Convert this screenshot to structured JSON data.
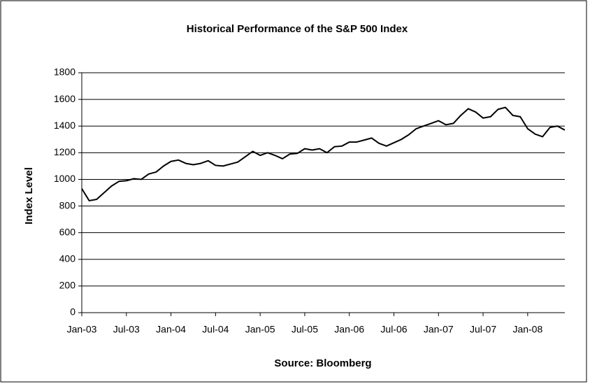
{
  "chart_data": {
    "type": "line",
    "title": "Historical Performance of the S&P 500 Index",
    "y_label": "Index Level",
    "x_label": "Source: Bloomberg",
    "categories": [
      "Jan-03",
      null,
      null,
      null,
      null,
      null,
      "Jul-03",
      null,
      null,
      null,
      null,
      null,
      "Jan-04",
      null,
      null,
      null,
      null,
      null,
      "Jul-04",
      null,
      null,
      null,
      null,
      null,
      "Jan-05",
      null,
      null,
      null,
      null,
      null,
      "Jul-05",
      null,
      null,
      null,
      null,
      null,
      "Jan-06",
      null,
      null,
      null,
      null,
      null,
      "Jul-06",
      null,
      null,
      null,
      null,
      null,
      "Jan-07",
      null,
      null,
      null,
      null,
      null,
      "Jul-07",
      null,
      null,
      null,
      null,
      null,
      "Jan-08",
      null,
      null,
      null,
      null,
      null
    ],
    "series": [
      {
        "name": "S&P 500",
        "color": "#000000",
        "values": [
          930,
          840,
          850,
          900,
          950,
          985,
          990,
          1005,
          1000,
          1040,
          1055,
          1100,
          1135,
          1145,
          1120,
          1110,
          1120,
          1140,
          1105,
          1100,
          1115,
          1130,
          1170,
          1210,
          1180,
          1200,
          1180,
          1155,
          1190,
          1195,
          1230,
          1220,
          1230,
          1200,
          1245,
          1250,
          1280,
          1280,
          1295,
          1310,
          1270,
          1250,
          1275,
          1300,
          1335,
          1380,
          1400,
          1420,
          1440,
          1410,
          1420,
          1480,
          1530,
          1505,
          1460,
          1470,
          1525,
          1540,
          1480,
          1470,
          1380,
          1340,
          1320,
          1390,
          1400,
          1370
        ]
      }
    ],
    "ylim": [
      0,
      1800
    ],
    "yticks": [
      0,
      200,
      400,
      600,
      800,
      1000,
      1200,
      1400,
      1600,
      1800
    ],
    "grid": true
  }
}
